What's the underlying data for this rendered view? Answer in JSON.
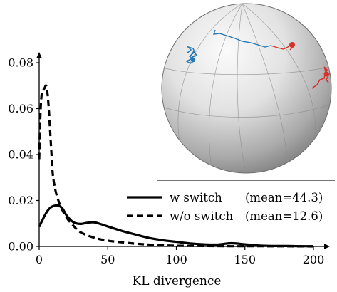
{
  "chart_data": {
    "type": "line",
    "xlabel": "KL divergence",
    "ylabel": "",
    "xlim": [
      0,
      210
    ],
    "ylim": [
      0,
      0.08
    ],
    "x_ticks": [
      "0",
      "50",
      "100",
      "150",
      "200"
    ],
    "y_ticks": [
      "0.00",
      "0.02",
      "0.04",
      "0.06",
      "0.08"
    ],
    "legend_position": "lower-right",
    "series": [
      {
        "name": "w switch",
        "legend_label": "w switch",
        "legend_mean": "(mean=44.3)",
        "style": "solid",
        "x": [
          0,
          2,
          5,
          8,
          11,
          14,
          17,
          20,
          25,
          30,
          35,
          40,
          45,
          50,
          60,
          70,
          80,
          90,
          100,
          110,
          120,
          130,
          140,
          150,
          160,
          170,
          180,
          190,
          200
        ],
        "y": [
          0.0085,
          0.011,
          0.0145,
          0.0168,
          0.0177,
          0.0178,
          0.0165,
          0.0135,
          0.0105,
          0.0098,
          0.0103,
          0.0105,
          0.0097,
          0.0087,
          0.0068,
          0.0052,
          0.0037,
          0.0027,
          0.002,
          0.0013,
          0.0009,
          0.0008,
          0.0014,
          0.0009,
          0.0004,
          0.0002,
          0.0002,
          0.0001,
          0.0001
        ]
      },
      {
        "name": "w/o switch",
        "legend_label": "w/o switch",
        "legend_mean": "(mean=12.6)",
        "style": "dashed",
        "x": [
          0,
          1,
          2,
          3,
          4,
          5,
          6,
          7,
          8,
          9,
          10,
          12,
          14,
          16,
          20,
          25,
          30,
          40,
          50,
          60,
          70,
          80,
          90,
          100,
          120,
          140,
          160,
          200
        ],
        "y": [
          0.038,
          0.059,
          0.067,
          0.068,
          0.069,
          0.07,
          0.067,
          0.06,
          0.05,
          0.04,
          0.031,
          0.024,
          0.02,
          0.017,
          0.0125,
          0.009,
          0.0062,
          0.0038,
          0.0025,
          0.0018,
          0.0012,
          0.0008,
          0.0005,
          0.0003,
          0.0002,
          0.0001,
          0.0001,
          0.0
        ]
      }
    ]
  },
  "inset": {
    "description_colors": {
      "sphere_light": "#fafafa",
      "sphere_dark": "#8a8a8a",
      "blue_trace": "#2878b5",
      "red_trace": "#d8302a"
    }
  }
}
